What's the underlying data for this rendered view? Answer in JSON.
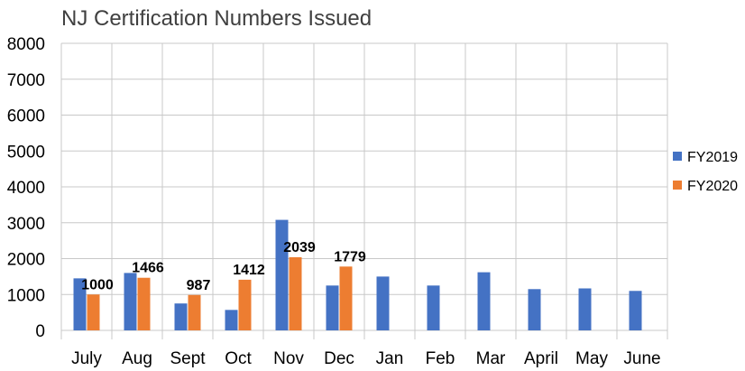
{
  "chart_data": {
    "type": "bar",
    "title": "NJ Certification Numbers Issued",
    "categories": [
      "July",
      "Aug",
      "Sept",
      "Oct",
      "Nov",
      "Dec",
      "Jan",
      "Feb",
      "Mar",
      "April",
      "May",
      "June"
    ],
    "series": [
      {
        "name": "FY2019",
        "color": "#4472C4",
        "values": [
          1450,
          1600,
          750,
          570,
          3080,
          1250,
          1500,
          1250,
          1620,
          1150,
          1170,
          1100
        ]
      },
      {
        "name": "FY2020",
        "color": "#ED7D31",
        "values": [
          1000,
          1466,
          987,
          1412,
          2039,
          1779,
          null,
          null,
          null,
          null,
          null,
          null
        ],
        "data_labels": [
          "1000",
          "1466",
          "987",
          "1412",
          "2039",
          "1779",
          null,
          null,
          null,
          null,
          null,
          null
        ]
      }
    ],
    "xlabel": "",
    "ylabel": "",
    "ylim": [
      0,
      8000
    ],
    "yticks": [
      "0",
      "1000",
      "2000",
      "3000",
      "4000",
      "5000",
      "6000",
      "7000",
      "8000"
    ],
    "grid": true,
    "legend_position": "right",
    "colors": {
      "grid": "#C8C8C8",
      "text": "#000000",
      "title": "#404040"
    }
  }
}
